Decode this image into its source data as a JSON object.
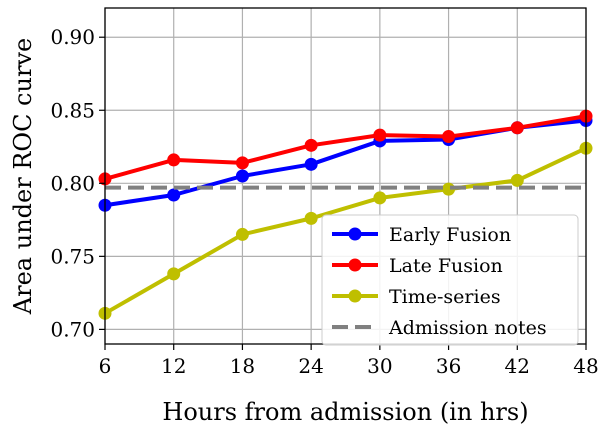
{
  "chart_data": {
    "type": "line",
    "xlabel": "Hours from admission (in hrs)",
    "ylabel": "Area under ROC curve",
    "x": [
      6,
      12,
      18,
      24,
      30,
      36,
      42,
      48
    ],
    "xlim": [
      6,
      48
    ],
    "ylim": [
      0.69,
      0.92
    ],
    "xticks": [
      6,
      12,
      18,
      24,
      30,
      36,
      42,
      48
    ],
    "yticks": [
      0.7,
      0.75,
      0.8,
      0.85,
      0.9
    ],
    "ytick_labels": [
      "0.70",
      "0.75",
      "0.80",
      "0.85",
      "0.90"
    ],
    "xtick_labels": [
      "6",
      "12",
      "18",
      "24",
      "30",
      "36",
      "42",
      "48"
    ],
    "grid": true,
    "legend_position": "lower-right",
    "series": [
      {
        "name": "Early Fusion",
        "color": "#0000ff",
        "marker": "circle",
        "values": [
          0.785,
          0.792,
          0.805,
          0.813,
          0.829,
          0.83,
          0.838,
          0.843
        ]
      },
      {
        "name": "Late Fusion",
        "color": "#ff0000",
        "marker": "circle",
        "values": [
          0.803,
          0.816,
          0.814,
          0.826,
          0.833,
          0.832,
          0.838,
          0.846
        ]
      },
      {
        "name": "Time-series",
        "color": "#bfbf00",
        "marker": "circle",
        "values": [
          0.711,
          0.738,
          0.765,
          0.776,
          0.79,
          0.796,
          0.802,
          0.824
        ]
      },
      {
        "name": "Admission notes",
        "color": "#808080",
        "marker": "none",
        "dashed": true,
        "values": [
          0.797,
          0.797,
          0.797,
          0.797,
          0.797,
          0.797,
          0.797,
          0.797
        ]
      }
    ]
  }
}
